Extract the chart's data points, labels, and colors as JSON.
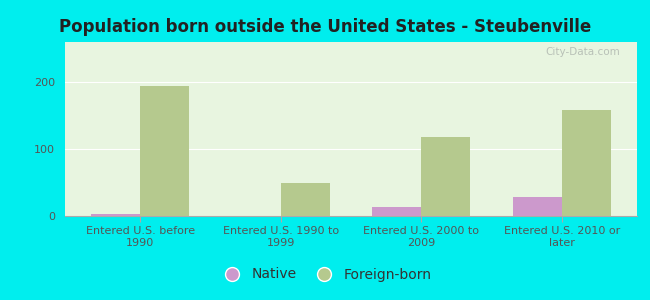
{
  "title": "Population born outside the United States - Steubenville",
  "categories": [
    "Entered U.S. before\n1990",
    "Entered U.S. 1990 to\n1999",
    "Entered U.S. 2000 to\n2009",
    "Entered U.S. 2010 or\nlater"
  ],
  "native_values": [
    3,
    0,
    13,
    28
  ],
  "foreign_born_values": [
    195,
    50,
    118,
    158
  ],
  "native_color": "#cc99cc",
  "foreign_born_color": "#b5c98e",
  "background_color": "#e8f5e0",
  "outer_background": "#00eeee",
  "ylim": [
    0,
    260
  ],
  "yticks": [
    0,
    100,
    200
  ],
  "bar_width": 0.35,
  "title_fontsize": 12,
  "tick_fontsize": 8,
  "legend_fontsize": 10,
  "watermark_text": "City-Data.com"
}
